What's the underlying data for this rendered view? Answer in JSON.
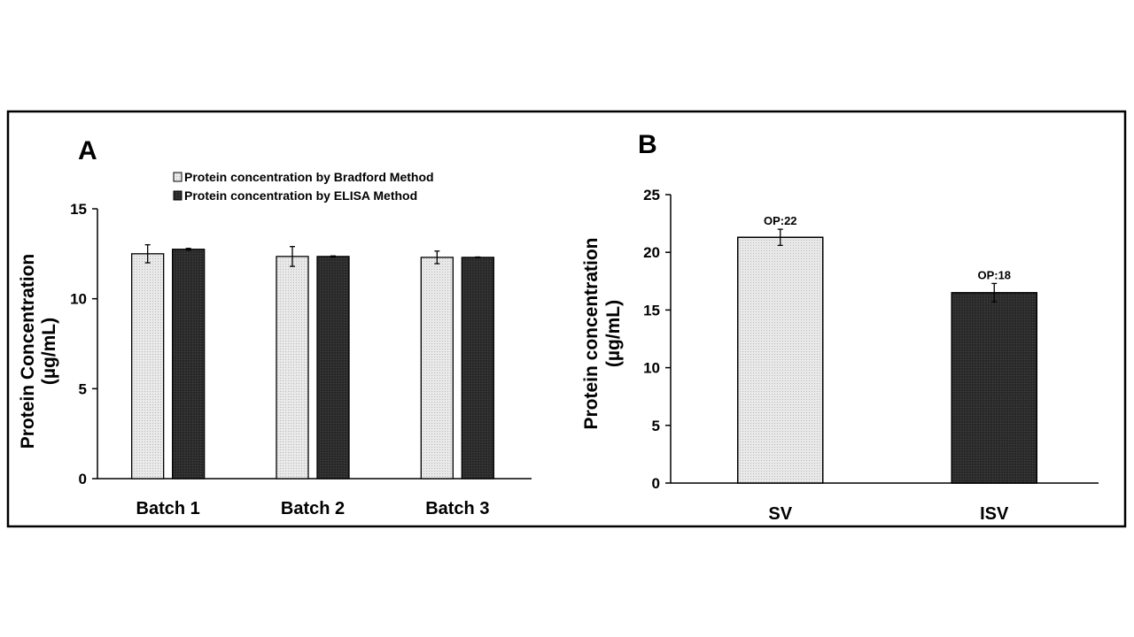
{
  "chart_data": [
    {
      "panel": "A",
      "type": "bar",
      "categories": [
        "Batch 1",
        "Batch 2",
        "Batch 3"
      ],
      "series": [
        {
          "name": "Protein concentration by Bradford Method",
          "values": [
            12.5,
            12.35,
            12.3
          ],
          "errors": [
            0.5,
            0.55,
            0.35
          ],
          "color": "#dcdcdc"
        },
        {
          "name": "Protein concentration by ELISA Method",
          "values": [
            12.75,
            12.35,
            12.3
          ],
          "errors": [
            0.05,
            0.03,
            0.02
          ],
          "color": "#262626"
        }
      ],
      "ylabel_line1": "Protein Concentration",
      "ylabel_line2": "(µg/mL)",
      "ylim": [
        0,
        15
      ],
      "yticks": [
        0,
        5,
        10,
        15
      ],
      "legend_position": "top"
    },
    {
      "panel": "B",
      "type": "bar",
      "categories": [
        "SV",
        "ISV"
      ],
      "values": [
        21.3,
        16.5
      ],
      "errors": [
        0.7,
        0.8
      ],
      "colors": [
        "#e6e6e6",
        "#262626"
      ],
      "data_labels": [
        "OP:22",
        "OP:18"
      ],
      "ylabel_line1": "Protein concentration",
      "ylabel_line2": "(µg/mL)",
      "ylim": [
        0,
        25
      ],
      "yticks": [
        0,
        5,
        10,
        15,
        20,
        25
      ]
    }
  ]
}
